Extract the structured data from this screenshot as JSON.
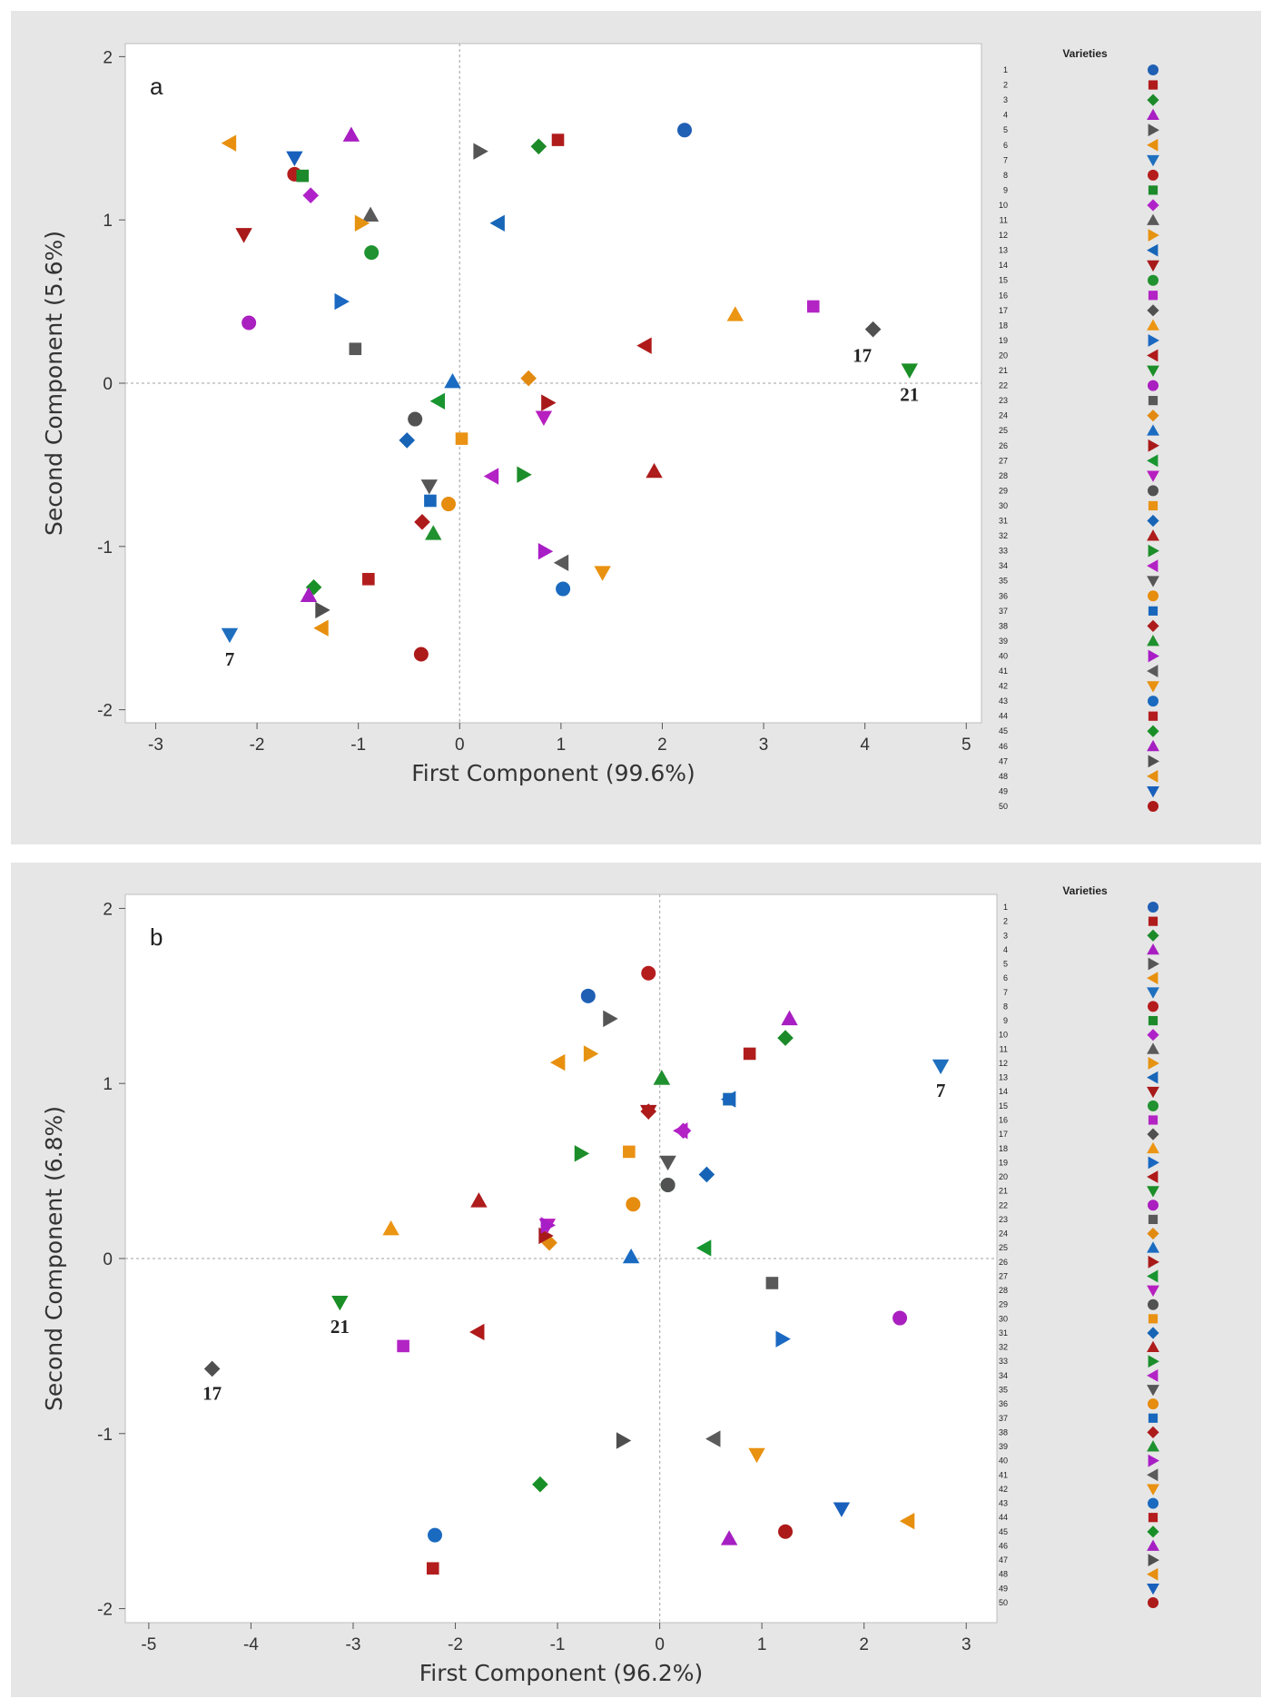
{
  "legend": {
    "title": "Varieties",
    "shape_cycle": [
      "circle",
      "square",
      "diamond",
      "triangle-up",
      "triangle-right",
      "triangle-left",
      "triangle-down"
    ],
    "color_cycle": [
      "#1f5fb4",
      "#b01c1c",
      "#1d8a2a",
      "#a81ec2",
      "#555555",
      "#e8900d",
      "#1f6fbf",
      "#b51d1d",
      "#1c8a2b",
      "#b022c9",
      "#5a5a5a",
      "#e69311",
      "#1766b8",
      "#a81919",
      "#20922f",
      "#b324c5",
      "#505050",
      "#ec9512",
      "#1a68c2",
      "#b01a1a",
      "#1b8e28",
      "#aa1fbf",
      "#595959",
      "#e28a10",
      "#1a6bc2",
      "#a81a1a",
      "#199530",
      "#b71fc0",
      "#525252",
      "#ea9214",
      "#1764b6",
      "#ae1c1c",
      "#1b8d29",
      "#b322c5",
      "#565656",
      "#e68c0e",
      "#1867bc",
      "#ad1b1b",
      "#1f912e",
      "#a81ec6",
      "#5b5b5b",
      "#e99110",
      "#1a6abf",
      "#b31d1d",
      "#199027",
      "#a61fc2",
      "#4f4f4f",
      "#e78f0f",
      "#1960bd",
      "#ad1a1a"
    ]
  },
  "chart_data": [
    {
      "type": "scatter",
      "panel_label": "a",
      "xlabel": "First Component (99.6%)",
      "ylabel": "Second Component (5.6%)",
      "xlim": [
        -3.3,
        5.15
      ],
      "ylim": [
        -2.08,
        2.08
      ],
      "xticks": [
        -3,
        -2,
        -1,
        0,
        1,
        2,
        3,
        4,
        5
      ],
      "yticks": [
        -2,
        -1,
        0,
        1,
        2
      ],
      "reference_lines": {
        "x": 0,
        "y": 0
      },
      "labeled_points": [
        {
          "variety": 7,
          "text": "7",
          "position": "below"
        },
        {
          "variety": 17,
          "text": "17",
          "position": "below-left"
        },
        {
          "variety": 21,
          "text": "21",
          "position": "below"
        }
      ],
      "points": [
        {
          "variety": 1,
          "x": 2.22,
          "y": 1.55
        },
        {
          "variety": 2,
          "x": 0.97,
          "y": 1.49
        },
        {
          "variety": 3,
          "x": 0.78,
          "y": 1.45
        },
        {
          "variety": 4,
          "x": -1.07,
          "y": 1.52
        },
        {
          "variety": 5,
          "x": 0.2,
          "y": 1.42
        },
        {
          "variety": 6,
          "x": -2.27,
          "y": 1.47
        },
        {
          "variety": 7,
          "x": -2.27,
          "y": -1.54
        },
        {
          "variety": 8,
          "x": -1.63,
          "y": 1.28
        },
        {
          "variety": 9,
          "x": -1.55,
          "y": 1.27
        },
        {
          "variety": 10,
          "x": -1.47,
          "y": 1.15
        },
        {
          "variety": 11,
          "x": -0.88,
          "y": 1.03
        },
        {
          "variety": 12,
          "x": -0.97,
          "y": 0.98
        },
        {
          "variety": 13,
          "x": 0.38,
          "y": 0.98
        },
        {
          "variety": 14,
          "x": -2.13,
          "y": 0.91
        },
        {
          "variety": 15,
          "x": -0.87,
          "y": 0.8
        },
        {
          "variety": 16,
          "x": 3.49,
          "y": 0.47
        },
        {
          "variety": 17,
          "x": 4.08,
          "y": 0.33
        },
        {
          "variety": 18,
          "x": 2.72,
          "y": 0.42
        },
        {
          "variety": 19,
          "x": -1.17,
          "y": 0.5
        },
        {
          "variety": 20,
          "x": 1.83,
          "y": 0.23
        },
        {
          "variety": 21,
          "x": 4.44,
          "y": 0.08
        },
        {
          "variety": 22,
          "x": -2.08,
          "y": 0.37
        },
        {
          "variety": 23,
          "x": -1.03,
          "y": 0.21
        },
        {
          "variety": 24,
          "x": 0.68,
          "y": 0.03
        },
        {
          "variety": 25,
          "x": -0.07,
          "y": 0.01
        },
        {
          "variety": 26,
          "x": 0.87,
          "y": -0.12
        },
        {
          "variety": 27,
          "x": -0.21,
          "y": -0.11
        },
        {
          "variety": 28,
          "x": 0.83,
          "y": -0.21
        },
        {
          "variety": 29,
          "x": -0.44,
          "y": -0.22
        },
        {
          "variety": 30,
          "x": 0.02,
          "y": -0.34
        },
        {
          "variety": 31,
          "x": -0.52,
          "y": -0.35
        },
        {
          "variety": 32,
          "x": 1.92,
          "y": -0.54
        },
        {
          "variety": 33,
          "x": 0.63,
          "y": -0.56
        },
        {
          "variety": 34,
          "x": 0.32,
          "y": -0.57
        },
        {
          "variety": 35,
          "x": -0.3,
          "y": -0.63
        },
        {
          "variety": 36,
          "x": -0.11,
          "y": -0.74
        },
        {
          "variety": 37,
          "x": -0.29,
          "y": -0.72
        },
        {
          "variety": 38,
          "x": -0.37,
          "y": -0.85
        },
        {
          "variety": 39,
          "x": -0.26,
          "y": -0.92
        },
        {
          "variety": 40,
          "x": 0.84,
          "y": -1.03
        },
        {
          "variety": 41,
          "x": 1.01,
          "y": -1.1
        },
        {
          "variety": 42,
          "x": 1.41,
          "y": -1.16
        },
        {
          "variety": 43,
          "x": 1.02,
          "y": -1.26
        },
        {
          "variety": 44,
          "x": -0.9,
          "y": -1.2
        },
        {
          "variety": 45,
          "x": -1.44,
          "y": -1.25
        },
        {
          "variety": 46,
          "x": -1.49,
          "y": -1.3
        },
        {
          "variety": 47,
          "x": -1.36,
          "y": -1.39
        },
        {
          "variety": 48,
          "x": -1.36,
          "y": -1.5
        },
        {
          "variety": 49,
          "x": -1.63,
          "y": 1.38
        },
        {
          "variety": 50,
          "x": -0.38,
          "y": -1.66
        }
      ]
    },
    {
      "type": "scatter",
      "panel_label": "b",
      "xlabel": "First Component (96.2%)",
      "ylabel": "Second Component (6.8%)",
      "xlim": [
        -5.23,
        3.3
      ],
      "ylim": [
        -2.08,
        2.08
      ],
      "xticks": [
        -5,
        -4,
        -3,
        -2,
        -1,
        0,
        1,
        2,
        3
      ],
      "yticks": [
        -2,
        -1,
        0,
        1,
        2
      ],
      "reference_lines": {
        "x": 0,
        "y": 0
      },
      "labeled_points": [
        {
          "variety": 7,
          "text": "7",
          "position": "below"
        },
        {
          "variety": 17,
          "text": "17",
          "position": "below"
        },
        {
          "variety": 21,
          "text": "21",
          "position": "below"
        }
      ],
      "points": [
        {
          "variety": 1,
          "x": -0.7,
          "y": 1.5
        },
        {
          "variety": 2,
          "x": 0.88,
          "y": 1.17
        },
        {
          "variety": 3,
          "x": 1.23,
          "y": 1.26
        },
        {
          "variety": 4,
          "x": 1.27,
          "y": 1.37
        },
        {
          "variety": 5,
          "x": -0.49,
          "y": 1.37
        },
        {
          "variety": 6,
          "x": -0.99,
          "y": 1.12
        },
        {
          "variety": 7,
          "x": 2.75,
          "y": 1.1
        },
        {
          "variety": 8,
          "x": -0.11,
          "y": 1.63
        },
        {
          "variety": 9,
          "x": 0.68,
          "y": 0.91
        },
        {
          "variety": 10,
          "x": 0.23,
          "y": 0.73
        },
        {
          "variety": 11,
          "x": 0.02,
          "y": 1.03
        },
        {
          "variety": 12,
          "x": -0.68,
          "y": 1.17
        },
        {
          "variety": 13,
          "x": 0.68,
          "y": 0.91
        },
        {
          "variety": 14,
          "x": -0.11,
          "y": 0.84
        },
        {
          "variety": 15,
          "x": 0.08,
          "y": 0.42
        },
        {
          "variety": 16,
          "x": -2.51,
          "y": -0.5
        },
        {
          "variety": 17,
          "x": -4.38,
          "y": -0.63
        },
        {
          "variety": 18,
          "x": -2.63,
          "y": 0.17
        },
        {
          "variety": 19,
          "x": 1.2,
          "y": -0.46
        },
        {
          "variety": 20,
          "x": -1.78,
          "y": -0.42
        },
        {
          "variety": 21,
          "x": -3.13,
          "y": -0.25
        },
        {
          "variety": 22,
          "x": 2.35,
          "y": -0.34
        },
        {
          "variety": 23,
          "x": 1.1,
          "y": -0.14
        },
        {
          "variety": 24,
          "x": -1.08,
          "y": 0.09
        },
        {
          "variety": 25,
          "x": -0.28,
          "y": 0.01
        },
        {
          "variety": 26,
          "x": -1.12,
          "y": 0.13
        },
        {
          "variety": 27,
          "x": 0.44,
          "y": 0.06
        },
        {
          "variety": 28,
          "x": -1.1,
          "y": 0.19
        },
        {
          "variety": 29,
          "x": 0.08,
          "y": 0.42
        },
        {
          "variety": 30,
          "x": -0.3,
          "y": 0.61
        },
        {
          "variety": 31,
          "x": 0.46,
          "y": 0.48
        },
        {
          "variety": 32,
          "x": -1.77,
          "y": 0.33
        },
        {
          "variety": 33,
          "x": -0.77,
          "y": 0.6
        },
        {
          "variety": 34,
          "x": 0.21,
          "y": 0.73
        },
        {
          "variety": 35,
          "x": 0.08,
          "y": 0.55
        },
        {
          "variety": 36,
          "x": -0.26,
          "y": 0.31
        },
        {
          "variety": 37,
          "x": 0.68,
          "y": 0.91
        },
        {
          "variety": 38,
          "x": -0.11,
          "y": 0.84
        },
        {
          "variety": 39,
          "x": 0.02,
          "y": 1.03
        },
        {
          "variety": 40,
          "x": -1.1,
          "y": 0.19
        },
        {
          "variety": 41,
          "x": 0.53,
          "y": -1.03
        },
        {
          "variety": 42,
          "x": 0.95,
          "y": -1.12
        },
        {
          "variety": 43,
          "x": -2.2,
          "y": -1.58
        },
        {
          "variety": 44,
          "x": -2.22,
          "y": -1.77
        },
        {
          "variety": 45,
          "x": -1.17,
          "y": -1.29
        },
        {
          "variety": 46,
          "x": 0.68,
          "y": -1.6
        },
        {
          "variety": 47,
          "x": -0.36,
          "y": -1.04
        },
        {
          "variety": 48,
          "x": 2.43,
          "y": -1.5
        },
        {
          "variety": 49,
          "x": 1.78,
          "y": -1.43
        },
        {
          "variety": 50,
          "x": 1.23,
          "y": -1.56
        }
      ]
    }
  ]
}
